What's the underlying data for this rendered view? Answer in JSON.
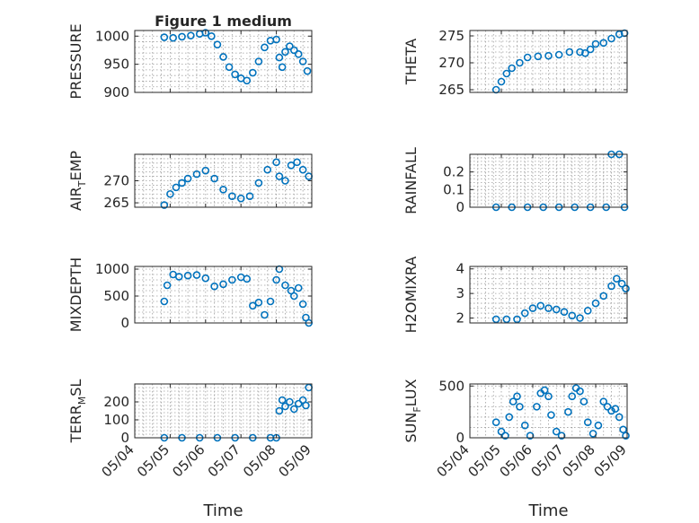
{
  "figure": {
    "background": "#ffffff",
    "marker_color": "#0072bd",
    "x_labels_dates": [
      "05/04",
      "05/05",
      "05/06",
      "05/07",
      "05/08",
      "05/09"
    ]
  },
  "chart_data": [
    {
      "type": "scatter",
      "title": "Figure 1 medium",
      "ylabel": "PRESSURE",
      "xlabel": "",
      "xlim": [
        "05/04",
        "05/09"
      ],
      "ylim": [
        900,
        1010
      ],
      "yticks": [
        900,
        950,
        1000
      ],
      "ytick_labels": [
        "900",
        "950",
        "1000"
      ],
      "xtick_labels": [],
      "grid": true,
      "x": [
        "05/04 20:00",
        "05/05 02:00",
        "05/05 08:00",
        "05/05 14:00",
        "05/05 20:00",
        "05/06 00:00",
        "05/06 04:00",
        "05/06 08:00",
        "05/06 12:00",
        "05/06 16:00",
        "05/06 20:00",
        "05/07 00:00",
        "05/07 04:00",
        "05/07 08:00",
        "05/07 12:00",
        "05/07 16:00",
        "05/07 20:00",
        "05/08 00:00",
        "05/08 02:00",
        "05/08 04:00",
        "05/08 06:00",
        "05/08 09:00",
        "05/08 12:00",
        "05/08 15:00",
        "05/08 18:00",
        "05/08 21:00"
      ],
      "y": [
        998,
        997,
        999,
        1001,
        1004,
        1006,
        1000,
        985,
        963,
        945,
        932,
        925,
        921,
        935,
        955,
        980,
        992,
        994,
        962,
        945,
        972,
        982,
        975,
        968,
        955,
        938
      ]
    },
    {
      "type": "scatter",
      "title": "",
      "ylabel": "THETA",
      "xlabel": "",
      "xlim": [
        "05/04",
        "05/09"
      ],
      "ylim": [
        264.5,
        276
      ],
      "yticks": [
        265,
        270,
        275
      ],
      "ytick_labels": [
        "265",
        "270",
        "275"
      ],
      "xtick_labels": [],
      "grid": true,
      "x": [
        "05/04 20:00",
        "05/05 00:00",
        "05/05 04:00",
        "05/05 08:00",
        "05/05 14:00",
        "05/05 20:00",
        "05/06 04:00",
        "05/06 12:00",
        "05/06 20:00",
        "05/07 04:00",
        "05/07 12:00",
        "05/07 16:00",
        "05/07 20:00",
        "05/08 00:00",
        "05/08 06:00",
        "05/08 12:00",
        "05/08 18:00",
        "05/08 22:00"
      ],
      "y": [
        265,
        266.5,
        268,
        269,
        270,
        271,
        271.2,
        271.3,
        271.5,
        272,
        272,
        271.8,
        272.5,
        273.5,
        273.7,
        274.5,
        275.3,
        275.5
      ]
    },
    {
      "type": "scatter",
      "title": "",
      "ylabel": "AIR_TEMP",
      "xlabel": "",
      "xlim": [
        "05/04",
        "05/09"
      ],
      "ylim": [
        264,
        276
      ],
      "yticks": [
        265,
        270
      ],
      "ytick_labels": [
        "265",
        "270"
      ],
      "xtick_labels": [],
      "grid": true,
      "x": [
        "05/04 20:00",
        "05/05 00:00",
        "05/05 04:00",
        "05/05 08:00",
        "05/05 12:00",
        "05/05 18:00",
        "05/06 00:00",
        "05/06 06:00",
        "05/06 12:00",
        "05/06 18:00",
        "05/07 00:00",
        "05/07 06:00",
        "05/07 12:00",
        "05/07 18:00",
        "05/08 00:00",
        "05/08 02:00",
        "05/08 06:00",
        "05/08 10:00",
        "05/08 14:00",
        "05/08 18:00",
        "05/08 22:00"
      ],
      "y": [
        264.5,
        267,
        268.5,
        269.5,
        270.5,
        271.5,
        272.3,
        270.5,
        268,
        266.5,
        266,
        266.5,
        269.5,
        272.5,
        274.2,
        271,
        270,
        273.5,
        274.2,
        272.5,
        271
      ]
    },
    {
      "type": "scatter",
      "title": "",
      "ylabel": "RAINFALL",
      "xlabel": "",
      "xlim": [
        "05/04",
        "05/09"
      ],
      "ylim": [
        0,
        0.3
      ],
      "yticks": [
        0,
        0.1,
        0.2
      ],
      "ytick_labels": [
        "0",
        "0.1",
        "0.2"
      ],
      "xtick_labels": [],
      "grid": true,
      "x": [
        "05/04 20:00",
        "05/05 08:00",
        "05/05 20:00",
        "05/06 08:00",
        "05/06 20:00",
        "05/07 08:00",
        "05/07 20:00",
        "05/08 08:00",
        "05/08 12:00",
        "05/08 18:00",
        "05/08 22:00"
      ],
      "y": [
        0,
        0,
        0,
        0,
        0,
        0,
        0,
        0,
        0.3,
        0.3,
        0
      ]
    },
    {
      "type": "scatter",
      "title": "",
      "ylabel": "MIXDEPTH",
      "xlabel": "",
      "xlim": [
        "05/04",
        "05/09"
      ],
      "ylim": [
        0,
        1050
      ],
      "yticks": [
        0,
        500,
        1000
      ],
      "ytick_labels": [
        "0",
        "500",
        "1000"
      ],
      "xtick_labels": [],
      "grid": true,
      "x": [
        "05/04 20:00",
        "05/04 22:00",
        "05/05 02:00",
        "05/05 06:00",
        "05/05 12:00",
        "05/05 18:00",
        "05/06 00:00",
        "05/06 06:00",
        "05/06 12:00",
        "05/06 18:00",
        "05/07 00:00",
        "05/07 04:00",
        "05/07 08:00",
        "05/07 12:00",
        "05/07 16:00",
        "05/07 20:00",
        "05/08 00:00",
        "05/08 02:00",
        "05/08 06:00",
        "05/08 10:00",
        "05/08 12:00",
        "05/08 15:00",
        "05/08 18:00",
        "05/08 20:00",
        "05/08 22:00"
      ],
      "y": [
        400,
        700,
        900,
        860,
        880,
        890,
        830,
        680,
        720,
        800,
        850,
        820,
        320,
        380,
        150,
        400,
        800,
        1000,
        700,
        600,
        500,
        650,
        350,
        100,
        0
      ]
    },
    {
      "type": "scatter",
      "title": "",
      "ylabel": "H2OMIXRA",
      "xlabel": "",
      "xlim": [
        "05/04",
        "05/09"
      ],
      "ylim": [
        1.8,
        4.1
      ],
      "yticks": [
        2,
        3,
        4
      ],
      "ytick_labels": [
        "2",
        "3",
        "4"
      ],
      "xtick_labels": [],
      "grid": true,
      "x": [
        "05/04 20:00",
        "05/05 04:00",
        "05/05 12:00",
        "05/05 18:00",
        "05/06 00:00",
        "05/06 06:00",
        "05/06 12:00",
        "05/06 18:00",
        "05/07 00:00",
        "05/07 06:00",
        "05/07 12:00",
        "05/07 18:00",
        "05/08 00:00",
        "05/08 06:00",
        "05/08 12:00",
        "05/08 16:00",
        "05/08 20:00",
        "05/08 23:00"
      ],
      "y": [
        1.95,
        1.95,
        1.95,
        2.2,
        2.4,
        2.5,
        2.4,
        2.35,
        2.25,
        2.1,
        2.0,
        2.3,
        2.6,
        2.9,
        3.3,
        3.6,
        3.4,
        3.2
      ]
    },
    {
      "type": "scatter",
      "title": "",
      "ylabel": "TERR_MSL",
      "xlabel": "Time",
      "xlim": [
        "05/04",
        "05/09"
      ],
      "ylim": [
        0,
        300
      ],
      "yticks": [
        0,
        100,
        200
      ],
      "ytick_labels": [
        "0",
        "100",
        "200"
      ],
      "xtick_labels": [
        "05/04",
        "05/05",
        "05/06",
        "05/07",
        "05/08",
        "05/09"
      ],
      "grid": true,
      "x": [
        "05/04 20:00",
        "05/05 08:00",
        "05/05 20:00",
        "05/06 08:00",
        "05/06 20:00",
        "05/07 08:00",
        "05/07 20:00",
        "05/08 00:00",
        "05/08 02:00",
        "05/08 04:00",
        "05/08 06:00",
        "05/08 09:00",
        "05/08 12:00",
        "05/08 15:00",
        "05/08 18:00",
        "05/08 20:00",
        "05/08 22:00"
      ],
      "y": [
        0,
        0,
        0,
        0,
        0,
        0,
        0,
        0,
        150,
        210,
        175,
        200,
        160,
        190,
        210,
        180,
        280
      ]
    },
    {
      "type": "scatter",
      "title": "",
      "ylabel": "SUN_FLUX",
      "xlabel": "Time",
      "xlim": [
        "05/04",
        "05/09"
      ],
      "ylim": [
        0,
        520
      ],
      "yticks": [
        0,
        500
      ],
      "ytick_labels": [
        "0",
        "500"
      ],
      "xtick_labels": [
        "05/04",
        "05/05",
        "05/06",
        "05/07",
        "05/08",
        "05/09"
      ],
      "grid": true,
      "x": [
        "05/04 20:00",
        "05/05 00:00",
        "05/05 03:00",
        "05/05 06:00",
        "05/05 09:00",
        "05/05 12:00",
        "05/05 14:00",
        "05/05 18:00",
        "05/05 22:00",
        "05/06 03:00",
        "05/06 06:00",
        "05/06 09:00",
        "05/06 12:00",
        "05/06 14:00",
        "05/06 18:00",
        "05/06 22:00",
        "05/07 03:00",
        "05/07 06:00",
        "05/07 09:00",
        "05/07 12:00",
        "05/07 15:00",
        "05/07 18:00",
        "05/07 22:00",
        "05/08 02:00",
        "05/08 06:00",
        "05/08 09:00",
        "05/08 12:00",
        "05/08 15:00",
        "05/08 18:00",
        "05/08 21:00",
        "05/08 23:00"
      ],
      "y": [
        150,
        60,
        20,
        200,
        350,
        400,
        300,
        120,
        20,
        300,
        430,
        460,
        400,
        220,
        60,
        20,
        250,
        400,
        480,
        450,
        350,
        150,
        40,
        120,
        350,
        300,
        260,
        280,
        200,
        80,
        20
      ]
    }
  ]
}
